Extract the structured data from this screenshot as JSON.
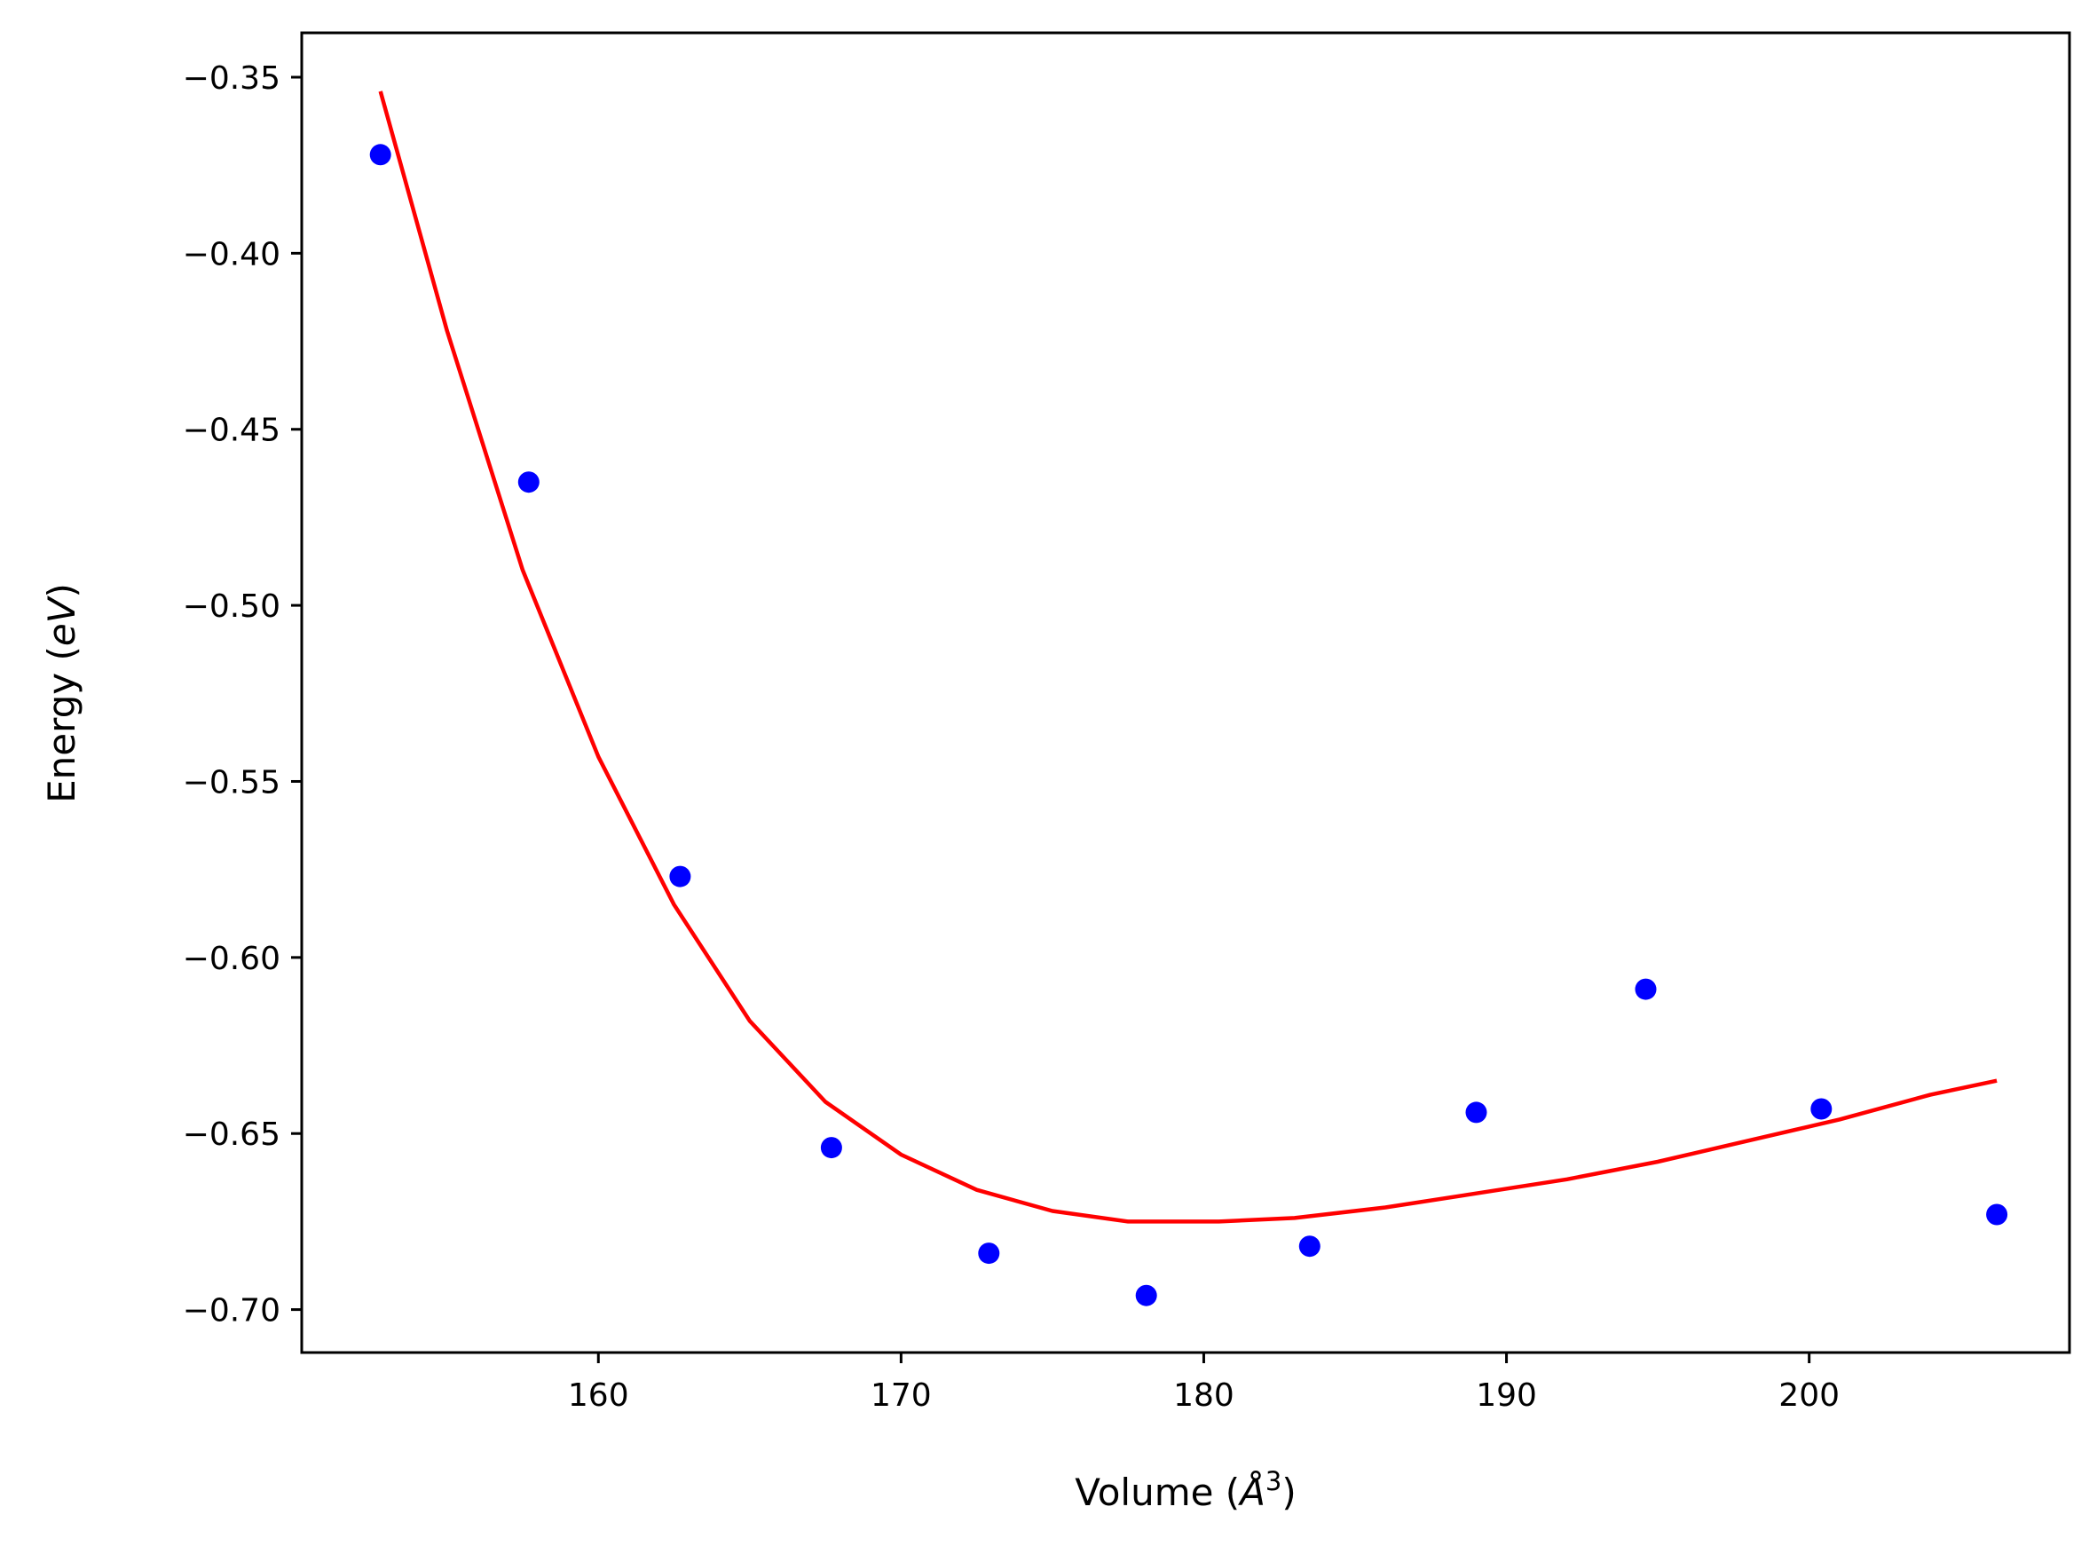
{
  "chart_data": {
    "type": "scatter",
    "title": "",
    "xlabel": {
      "prefix": "Volume (",
      "symbol": "Å",
      "superscript": "3",
      "suffix": ")"
    },
    "ylabel": {
      "prefix": "Energy (",
      "symbol": "eV",
      "suffix": ")"
    },
    "xlim": [
      150.2,
      208.6
    ],
    "ylim": [
      -0.7122,
      -0.3374
    ],
    "x_ticks": [
      160,
      170,
      180,
      190,
      200
    ],
    "x_tick_labels": [
      "160",
      "170",
      "180",
      "190",
      "200"
    ],
    "y_ticks": [
      -0.35,
      -0.4,
      -0.45,
      -0.5,
      -0.55,
      -0.6,
      -0.65,
      -0.7
    ],
    "y_tick_labels": [
      "−0.35",
      "−0.40",
      "−0.45",
      "−0.50",
      "−0.55",
      "−0.60",
      "−0.65",
      "−0.70"
    ],
    "grid": false,
    "legend": false,
    "series": [
      {
        "kind": "points",
        "color": "#0000ff",
        "x": [
          152.8,
          157.7,
          162.7,
          167.7,
          172.9,
          178.1,
          183.5,
          189.0,
          194.6,
          200.4,
          206.2
        ],
        "y": [
          -0.372,
          -0.465,
          -0.577,
          -0.654,
          -0.684,
          -0.696,
          -0.682,
          -0.644,
          -0.609,
          -0.643,
          -0.673
        ]
      },
      {
        "kind": "fit-line",
        "color": "#ff0000",
        "x": [
          152.8,
          155.0,
          157.5,
          160.0,
          162.5,
          165.0,
          167.5,
          170.0,
          172.5,
          175.0,
          177.5,
          180.5,
          183.0,
          186.0,
          189.0,
          192.0,
          195.0,
          198.0,
          201.0,
          204.0,
          206.2
        ],
        "y": [
          -0.354,
          -0.422,
          -0.49,
          -0.543,
          -0.585,
          -0.618,
          -0.641,
          -0.656,
          -0.666,
          -0.672,
          -0.675,
          -0.675,
          -0.674,
          -0.671,
          -0.667,
          -0.663,
          -0.658,
          -0.652,
          -0.646,
          -0.639,
          -0.635
        ]
      }
    ]
  }
}
